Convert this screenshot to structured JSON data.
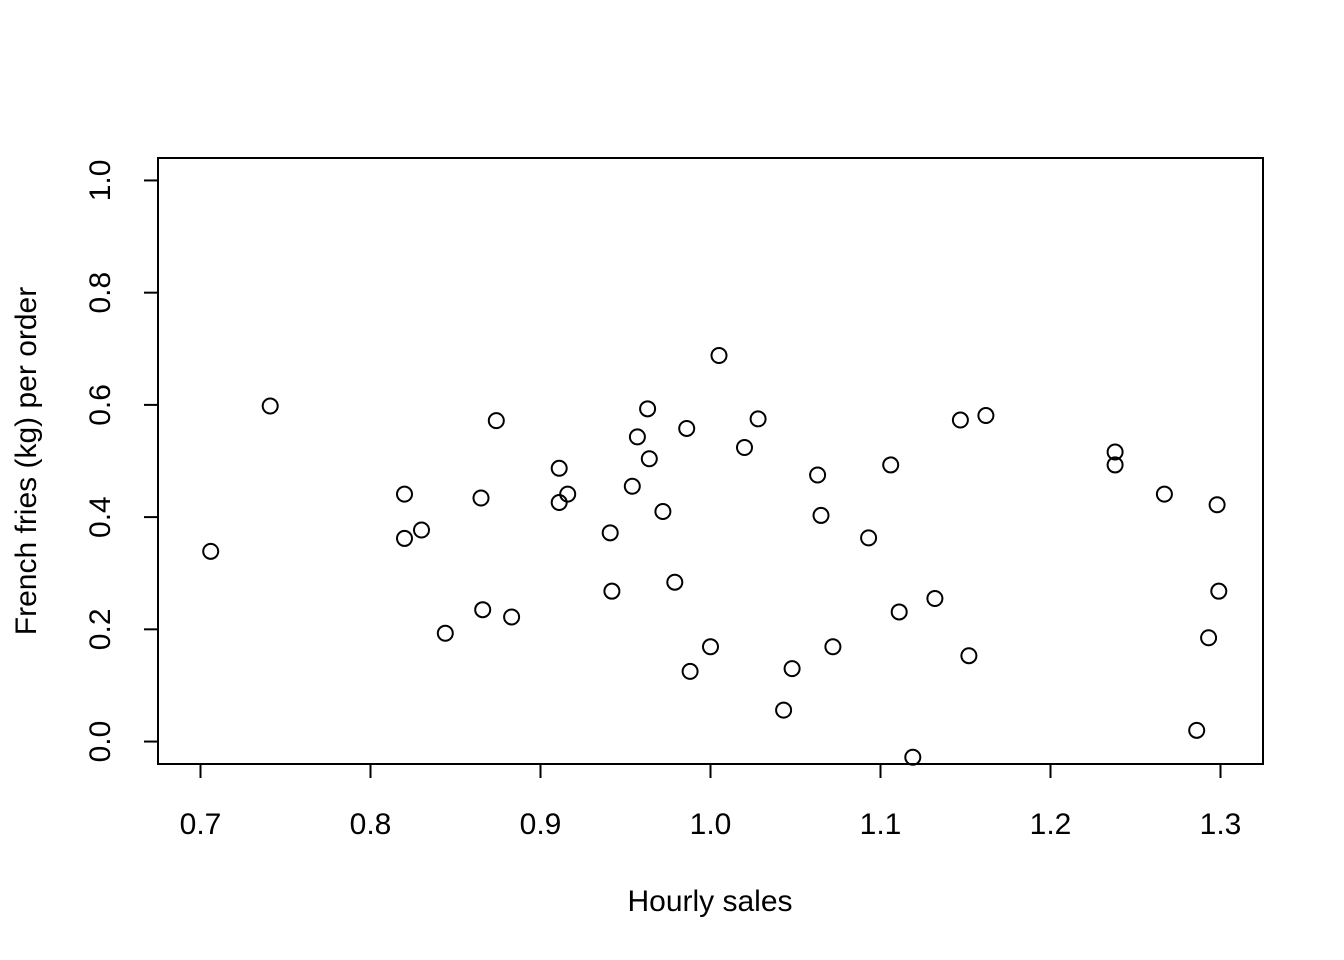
{
  "chart_data": {
    "type": "scatter",
    "title": "",
    "xlabel": "Hourly sales",
    "ylabel": "French fries (kg) per order",
    "xlim": [
      0.675,
      1.325
    ],
    "ylim": [
      -0.04,
      1.04
    ],
    "xticks": [
      0.7,
      0.8,
      0.9,
      1.0,
      1.1,
      1.2,
      1.3
    ],
    "xtick_labels": [
      "0.7",
      "0.8",
      "0.9",
      "1.0",
      "1.1",
      "1.2",
      "1.3"
    ],
    "yticks": [
      0.0,
      0.2,
      0.4,
      0.6,
      0.8,
      1.0
    ],
    "ytick_labels": [
      "0.0",
      "0.2",
      "0.4",
      "0.6",
      "0.8",
      "1.0"
    ],
    "grid": false,
    "marker": "open-circle",
    "points": [
      {
        "x": 0.706,
        "y": 0.339
      },
      {
        "x": 0.741,
        "y": 0.598
      },
      {
        "x": 0.82,
        "y": 0.441
      },
      {
        "x": 0.82,
        "y": 0.362
      },
      {
        "x": 0.83,
        "y": 0.377
      },
      {
        "x": 0.844,
        "y": 0.193
      },
      {
        "x": 0.865,
        "y": 0.434
      },
      {
        "x": 0.866,
        "y": 0.235
      },
      {
        "x": 0.874,
        "y": 0.572
      },
      {
        "x": 0.883,
        "y": 0.222
      },
      {
        "x": 0.911,
        "y": 0.487
      },
      {
        "x": 0.911,
        "y": 0.426
      },
      {
        "x": 0.916,
        "y": 0.441
      },
      {
        "x": 0.941,
        "y": 0.372
      },
      {
        "x": 0.942,
        "y": 0.268
      },
      {
        "x": 0.954,
        "y": 0.455
      },
      {
        "x": 0.957,
        "y": 0.543
      },
      {
        "x": 0.963,
        "y": 0.593
      },
      {
        "x": 0.964,
        "y": 0.504
      },
      {
        "x": 0.972,
        "y": 0.41
      },
      {
        "x": 0.979,
        "y": 0.284
      },
      {
        "x": 0.986,
        "y": 0.558
      },
      {
        "x": 0.988,
        "y": 0.125
      },
      {
        "x": 1.0,
        "y": 0.169
      },
      {
        "x": 1.005,
        "y": 0.688
      },
      {
        "x": 1.02,
        "y": 0.524
      },
      {
        "x": 1.028,
        "y": 0.575
      },
      {
        "x": 1.043,
        "y": 0.056
      },
      {
        "x": 1.048,
        "y": 0.13
      },
      {
        "x": 1.063,
        "y": 0.475
      },
      {
        "x": 1.065,
        "y": 0.403
      },
      {
        "x": 1.072,
        "y": 0.169
      },
      {
        "x": 1.093,
        "y": 0.363
      },
      {
        "x": 1.106,
        "y": 0.493
      },
      {
        "x": 1.111,
        "y": 0.231
      },
      {
        "x": 1.119,
        "y": -0.028
      },
      {
        "x": 1.132,
        "y": 0.255
      },
      {
        "x": 1.147,
        "y": 0.573
      },
      {
        "x": 1.152,
        "y": 0.153
      },
      {
        "x": 1.162,
        "y": 0.581
      },
      {
        "x": 1.238,
        "y": 0.516
      },
      {
        "x": 1.238,
        "y": 0.493
      },
      {
        "x": 1.267,
        "y": 0.441
      },
      {
        "x": 1.286,
        "y": 0.02
      },
      {
        "x": 1.293,
        "y": 0.185
      },
      {
        "x": 1.298,
        "y": 0.422
      },
      {
        "x": 1.299,
        "y": 0.268
      }
    ]
  }
}
